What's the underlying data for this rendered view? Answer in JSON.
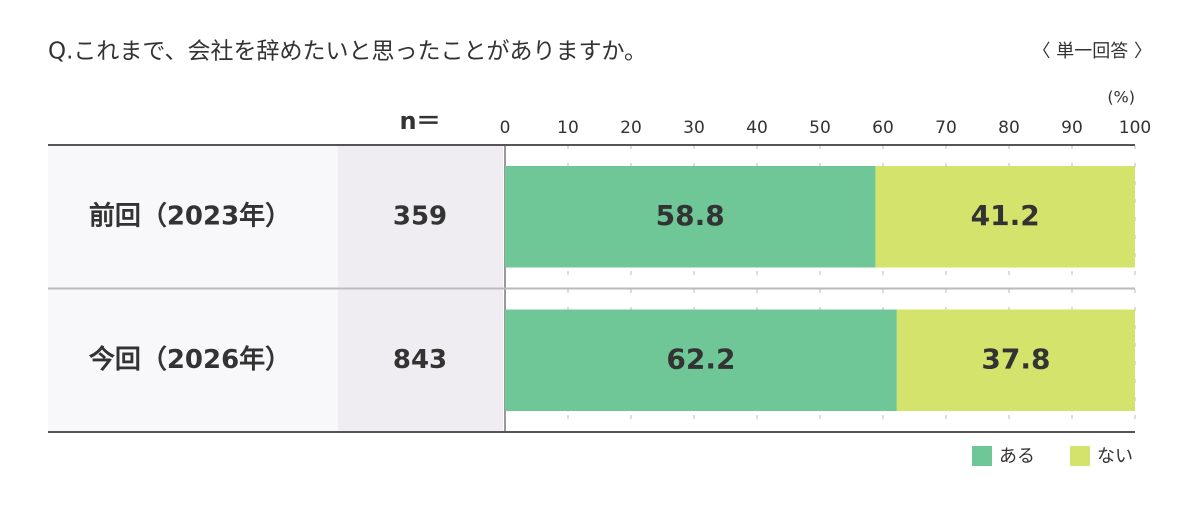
{
  "chart_data": {
    "type": "stacked_bar_horizontal",
    "title": "Q.これまで、会社を辞めたいと思ったことがありますか。",
    "note": "〈 単一回答 〉",
    "unit": "(%)",
    "n_label": "n＝",
    "categories": [
      "前回（2023年）",
      "今回（2026年）"
    ],
    "n": [
      359,
      843
    ],
    "series": [
      {
        "name": "ある",
        "color": "#6fc797",
        "values": [
          58.8,
          62.2
        ]
      },
      {
        "name": "ない",
        "color": "#d4e36b",
        "values": [
          41.2,
          37.8
        ]
      }
    ],
    "xlim": [
      0,
      100
    ],
    "xticks": [
      0,
      10,
      20,
      30,
      40,
      50,
      60,
      70,
      80,
      90,
      100
    ],
    "grid": true
  }
}
